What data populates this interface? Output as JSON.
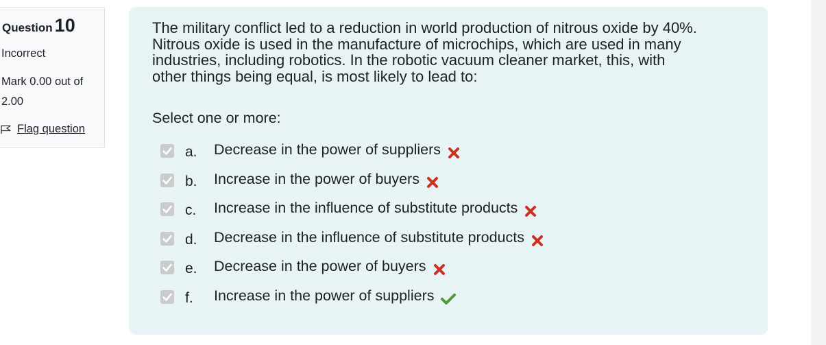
{
  "question": {
    "label": "Question",
    "number": "10",
    "state": "Incorrect",
    "mark_line1": "Mark 0.00 out of",
    "mark_line2": "2.00",
    "flag_label": "Flag question"
  },
  "content": {
    "text_lines": [
      "The military conflict led to a reduction in world production of nitrous oxide by 40%.",
      "Nitrous oxide is used in the manufacture of microchips, which are used in many",
      "industries, including robotics. In the robotic vacuum cleaner market, this, with",
      "other things being equal, is most likely to lead to:"
    ],
    "prompt": "Select one or more:"
  },
  "options": [
    {
      "letter": "a.",
      "text": "Decrease in the power of suppliers",
      "checked": true,
      "result": "incorrect"
    },
    {
      "letter": "b.",
      "text": "Increase in the power of buyers",
      "checked": true,
      "result": "incorrect"
    },
    {
      "letter": "c.",
      "text": "Increase in the influence of substitute products",
      "checked": true,
      "result": "incorrect"
    },
    {
      "letter": "d.",
      "text": "Decrease in the influence of substitute products",
      "checked": true,
      "result": "incorrect"
    },
    {
      "letter": "e.",
      "text": "Decrease in the power of buyers",
      "checked": true,
      "result": "incorrect"
    },
    {
      "letter": "f.",
      "text": "Increase in the power of suppliers",
      "checked": true,
      "result": "correct"
    }
  ],
  "colors": {
    "incorrect": "#ca3120",
    "correct": "#4e9a3b",
    "panel_bg": "#e7f3f5"
  }
}
